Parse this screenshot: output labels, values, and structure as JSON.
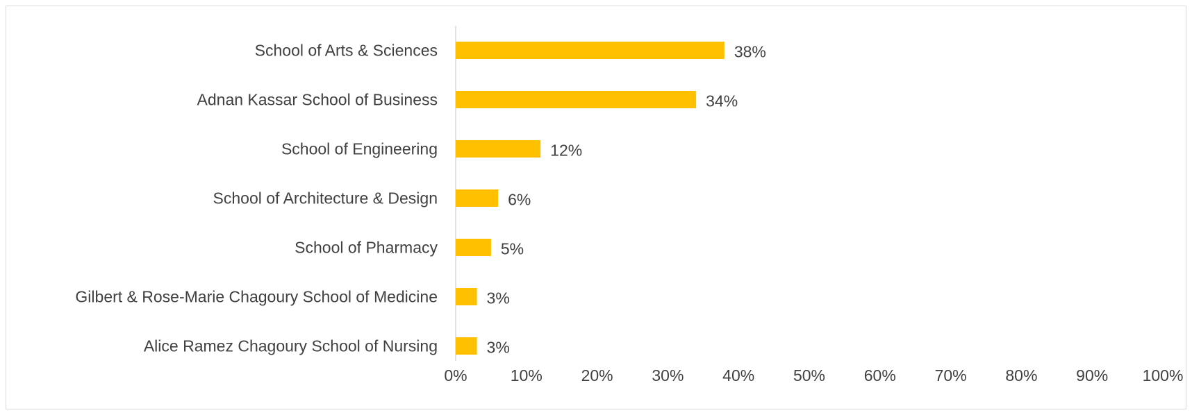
{
  "chart_data": {
    "type": "bar",
    "orientation": "horizontal",
    "title": "",
    "xlabel": "",
    "ylabel": "",
    "categories": [
      "School of Arts & Sciences",
      "Adnan Kassar School of Business",
      "School of Engineering",
      "School of Architecture & Design",
      "School of Pharmacy",
      "Gilbert & Rose-Marie Chagoury School of Medicine",
      "Alice Ramez Chagoury School of Nursing"
    ],
    "values": [
      38,
      34,
      12,
      6,
      5,
      3,
      3
    ],
    "value_labels": [
      "38%",
      "34%",
      "12%",
      "6%",
      "5%",
      "3%",
      "3%"
    ],
    "xlim": [
      0,
      100
    ],
    "x_ticks": [
      0,
      10,
      20,
      30,
      40,
      50,
      60,
      70,
      80,
      90,
      100
    ],
    "x_tick_labels": [
      "0%",
      "10%",
      "20%",
      "30%",
      "40%",
      "50%",
      "60%",
      "70%",
      "80%",
      "90%",
      "100%"
    ],
    "grid": false,
    "legend": "none"
  },
  "colors": {
    "bar": "#FFC000",
    "text": "#404040",
    "axis": "#D9D9D9",
    "border": "#D9D9D9",
    "background": "#FFFFFF"
  }
}
